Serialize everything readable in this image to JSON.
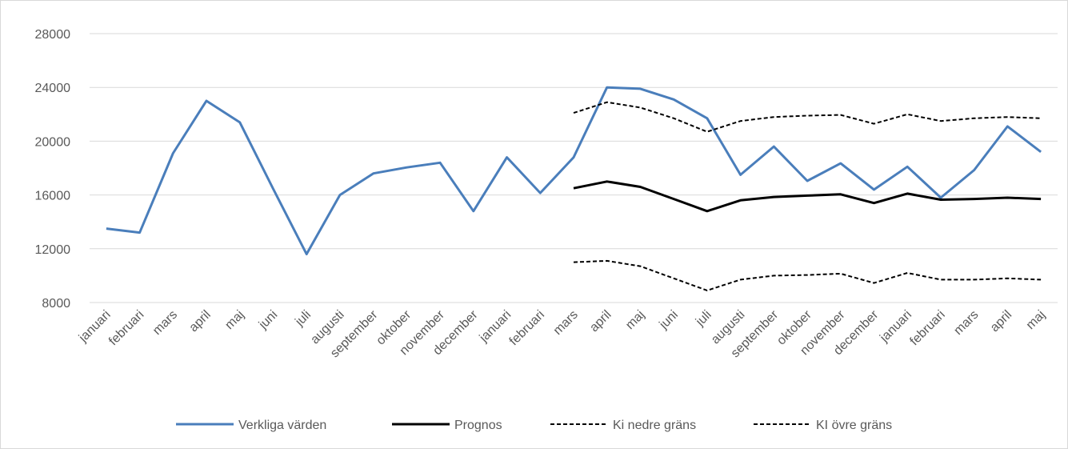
{
  "chart_data": {
    "type": "line",
    "categories": [
      "januari",
      "februari",
      "mars",
      "april",
      "maj",
      "juni",
      "juli",
      "augusti",
      "september",
      "oktober",
      "november",
      "december",
      "januari",
      "februari",
      "mars",
      "april",
      "maj",
      "juni",
      "juli",
      "augusti",
      "september",
      "oktober",
      "november",
      "december",
      "januari",
      "februari",
      "mars",
      "april",
      "maj"
    ],
    "series": [
      {
        "name": "Verkliga värden",
        "color": "#4a7ebb",
        "dashed": false,
        "values": [
          13500,
          13200,
          19100,
          23000,
          21400,
          16450,
          11600,
          16000,
          17600,
          18050,
          18400,
          14800,
          18800,
          16150,
          18800,
          24000,
          23900,
          23100,
          21700,
          17500,
          19600,
          17050,
          18350,
          16400,
          18100,
          15800,
          17850,
          21100,
          19200
        ]
      },
      {
        "name": "Prognos",
        "color": "#000000",
        "dashed": false,
        "values": [
          null,
          null,
          null,
          null,
          null,
          null,
          null,
          null,
          null,
          null,
          null,
          null,
          null,
          null,
          16500,
          17000,
          16600,
          15700,
          14800,
          15600,
          15850,
          15950,
          16050,
          15400,
          16100,
          15650,
          15700,
          15800,
          15700
        ]
      },
      {
        "name": "Ki nedre gräns",
        "color": "#000000",
        "dashed": true,
        "values": [
          null,
          null,
          null,
          null,
          null,
          null,
          null,
          null,
          null,
          null,
          null,
          null,
          null,
          null,
          11000,
          11100,
          10700,
          9800,
          8900,
          9700,
          10000,
          10050,
          10150,
          9450,
          10200,
          9700,
          9700,
          9800,
          9700
        ]
      },
      {
        "name": "KI övre gräns",
        "color": "#000000",
        "dashed": true,
        "values": [
          null,
          null,
          null,
          null,
          null,
          null,
          null,
          null,
          null,
          null,
          null,
          null,
          null,
          null,
          22100,
          22900,
          22500,
          21700,
          20700,
          21500,
          21800,
          21900,
          21950,
          21300,
          22000,
          21500,
          21700,
          21800,
          21700
        ]
      }
    ],
    "ylim": [
      8000,
      28000
    ],
    "yticks": [
      8000,
      12000,
      16000,
      20000,
      24000,
      28000
    ],
    "grid": true
  }
}
